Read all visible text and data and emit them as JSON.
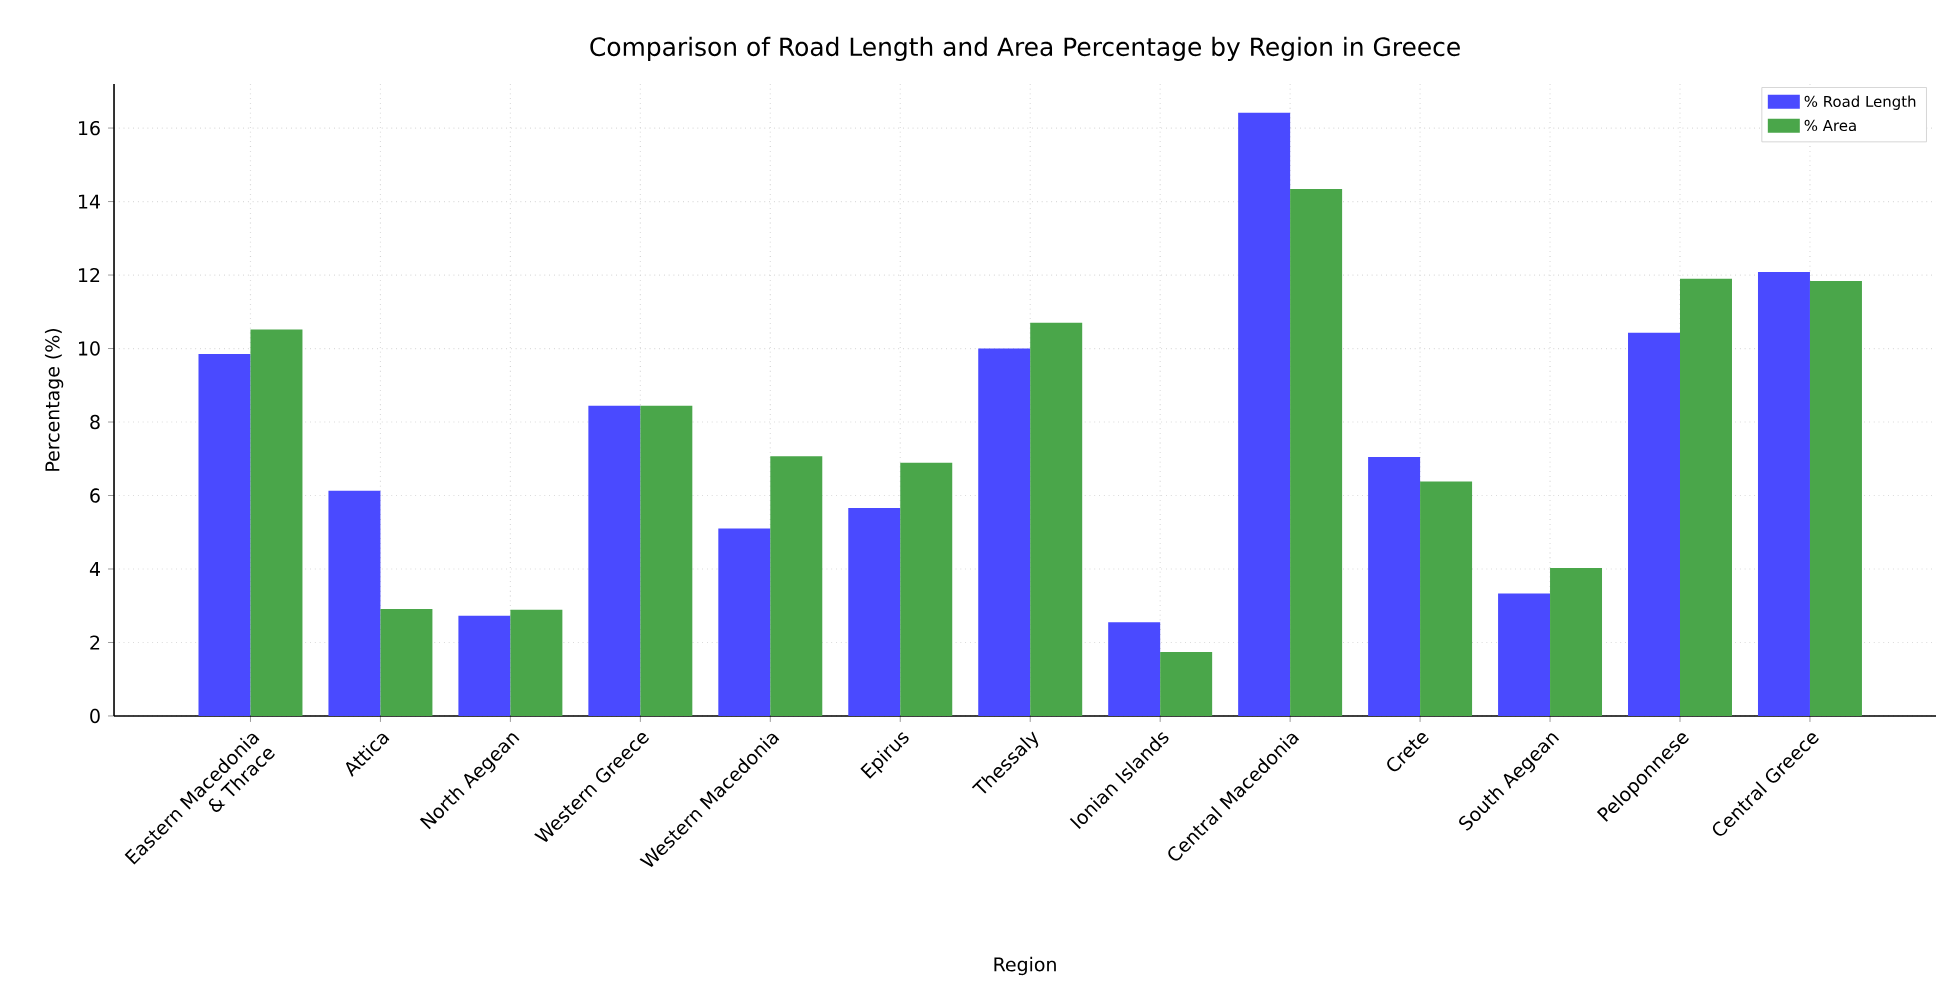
{
  "chart_data": {
    "type": "bar",
    "title": "Comparison of Road Length and Area Percentage by Region in Greece",
    "xlabel": "Region",
    "ylabel": "Percentage (%)",
    "categories": [
      "Eastern Macedonia\n& Thrace",
      "Attica",
      "North Aegean",
      "Western Greece",
      "Western Macedonia",
      "Epirus",
      "Thessaly",
      "Ionian Islands",
      "Central Macedonia",
      "Crete",
      "South Aegean",
      "Peloponnese",
      "Central Greece"
    ],
    "series": [
      {
        "name": "% Road Length",
        "color": "#4a4aff",
        "values": [
          9.85,
          6.13,
          2.73,
          8.44,
          5.1,
          5.66,
          10.0,
          2.55,
          16.42,
          7.05,
          3.33,
          10.43,
          12.08
        ]
      },
      {
        "name": "% Area",
        "color": "#4aa64a",
        "values": [
          10.52,
          2.91,
          2.89,
          8.44,
          7.07,
          6.89,
          10.7,
          1.74,
          14.34,
          6.38,
          4.03,
          11.9,
          11.84
        ]
      }
    ],
    "ylim": [
      0,
      17.2
    ],
    "yticks": [
      0,
      2,
      4,
      6,
      8,
      10,
      12,
      14,
      16
    ],
    "grid": true,
    "legend": "top right"
  }
}
